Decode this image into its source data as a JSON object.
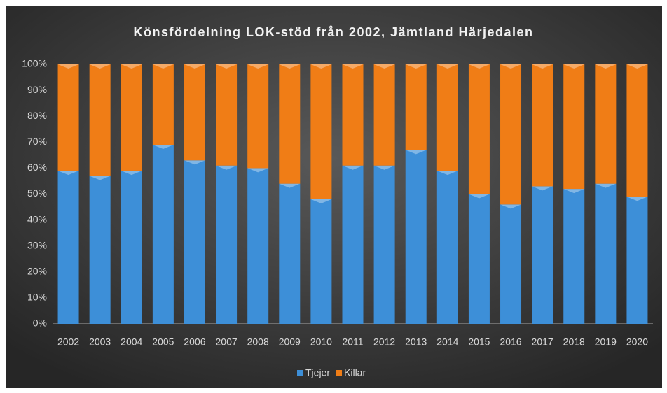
{
  "chart_data": {
    "type": "stacked_bar",
    "title": "Könsfördelning LOK-stöd från 2002, Jämtland Härjedalen",
    "categories": [
      "2002",
      "2003",
      "2004",
      "2005",
      "2006",
      "2007",
      "2008",
      "2009",
      "2010",
      "2011",
      "2012",
      "2013",
      "2014",
      "2015",
      "2016",
      "2017",
      "2018",
      "2019",
      "2020"
    ],
    "series": [
      {
        "name": "Tjejer",
        "color": "#3d8fd8",
        "values": [
          59,
          57,
          59,
          69,
          63,
          61,
          60,
          54,
          48,
          61,
          61,
          67,
          59,
          50,
          46,
          53,
          52,
          54,
          49
        ]
      },
      {
        "name": "Killar",
        "color": "#f07d16",
        "values": [
          41,
          43,
          41,
          31,
          37,
          39,
          40,
          46,
          52,
          39,
          39,
          33,
          41,
          50,
          54,
          47,
          48,
          46,
          51
        ]
      }
    ],
    "ylim": [
      0,
      100
    ],
    "yticks": [
      {
        "value": 0,
        "label": "0%"
      },
      {
        "value": 10,
        "label": "10%"
      },
      {
        "value": 20,
        "label": "20%"
      },
      {
        "value": 30,
        "label": "30%"
      },
      {
        "value": 40,
        "label": "40%"
      },
      {
        "value": 50,
        "label": "50%"
      },
      {
        "value": 60,
        "label": "60%"
      },
      {
        "value": 70,
        "label": "70%"
      },
      {
        "value": 80,
        "label": "80%"
      },
      {
        "value": 90,
        "label": "90%"
      },
      {
        "value": 100,
        "label": "100%"
      }
    ],
    "legend": "bottom"
  }
}
